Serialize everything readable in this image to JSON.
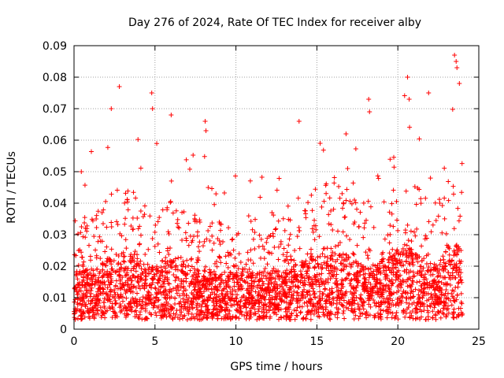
{
  "chart_data": {
    "type": "scatter",
    "title": "Day 276 of 2024, Rate Of TEC Index for receiver alby",
    "xlabel": "GPS time / hours",
    "ylabel": "ROTI / TECUs",
    "xlim": [
      0,
      25
    ],
    "ylim": [
      0,
      0.09
    ],
    "x_ticks": [
      0,
      5,
      10,
      15,
      20,
      25
    ],
    "x_tick_labels": [
      "0",
      "5",
      "10",
      "15",
      "20",
      "25"
    ],
    "y_ticks": [
      0,
      0.01,
      0.02,
      0.03,
      0.04,
      0.05,
      0.06,
      0.07,
      0.08,
      0.09
    ],
    "y_tick_labels": [
      "0",
      "0.01",
      "0.02",
      "0.03",
      "0.04",
      "0.05",
      "0.06",
      "0.07",
      "0.08",
      "0.09"
    ],
    "grid": true,
    "marker": "plus",
    "color": "#ff0000",
    "series": [
      {
        "name": "ROTI",
        "x_range": [
          0,
          24
        ],
        "typical_range": [
          0.002,
          0.03
        ],
        "notable_points": [
          {
            "x": 0.45,
            "y": 0.05
          },
          {
            "x": 2.3,
            "y": 0.07
          },
          {
            "x": 2.8,
            "y": 0.077
          },
          {
            "x": 4.8,
            "y": 0.075
          },
          {
            "x": 4.85,
            "y": 0.07
          },
          {
            "x": 6.0,
            "y": 0.068
          },
          {
            "x": 8.1,
            "y": 0.066
          },
          {
            "x": 8.15,
            "y": 0.063
          },
          {
            "x": 13.9,
            "y": 0.066
          },
          {
            "x": 15.2,
            "y": 0.059
          },
          {
            "x": 16.8,
            "y": 0.062
          },
          {
            "x": 18.2,
            "y": 0.073
          },
          {
            "x": 18.25,
            "y": 0.069
          },
          {
            "x": 20.6,
            "y": 0.08
          },
          {
            "x": 20.7,
            "y": 0.073
          },
          {
            "x": 21.9,
            "y": 0.075
          },
          {
            "x": 23.5,
            "y": 0.087
          },
          {
            "x": 23.6,
            "y": 0.085
          },
          {
            "x": 23.65,
            "y": 0.083
          },
          {
            "x": 23.8,
            "y": 0.078
          }
        ]
      }
    ]
  }
}
